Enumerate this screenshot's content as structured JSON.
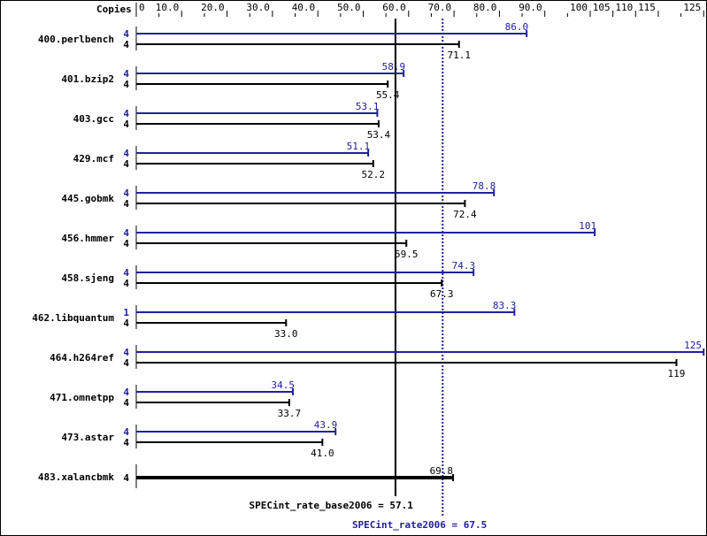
{
  "chart_data": {
    "type": "bar",
    "orientation": "horizontal",
    "copies_header": "Copies",
    "xlim": [
      0,
      125
    ],
    "tick_labels": [
      "0",
      "10.0",
      "20.0",
      "30.0",
      "40.0",
      "50.0",
      "60.0",
      "70.0",
      "80.0",
      "90.0",
      "100",
      "105",
      "110",
      "115",
      "125"
    ],
    "tick_values": [
      0,
      10,
      20,
      30,
      40,
      50,
      60,
      70,
      80,
      90,
      100,
      105,
      110,
      115,
      125
    ],
    "categories": [
      "400.perlbench",
      "401.bzip2",
      "403.gcc",
      "429.mcf",
      "445.gobmk",
      "456.hmmer",
      "458.sjeng",
      "462.libquantum",
      "464.h264ref",
      "471.omnetpp",
      "473.astar",
      "483.xalancbmk"
    ],
    "series": [
      {
        "key": "peak",
        "color": "#2020a0",
        "values": [
          86.0,
          58.9,
          53.1,
          51.1,
          78.8,
          101,
          74.3,
          83.3,
          125,
          34.5,
          43.9,
          null
        ],
        "labels": [
          "86.0",
          "58.9",
          "53.1",
          "51.1",
          "78.8",
          "101",
          "74.3",
          "83.3",
          "125",
          "34.5",
          "43.9",
          null
        ],
        "copies": [
          "4",
          "4",
          "4",
          "4",
          "4",
          "4",
          "4",
          "1",
          "4",
          "4",
          "4",
          null
        ]
      },
      {
        "key": "base",
        "color": "#000000",
        "values": [
          71.1,
          55.4,
          53.4,
          52.2,
          72.4,
          59.5,
          67.3,
          33.0,
          119,
          33.7,
          41.0,
          69.8
        ],
        "labels": [
          "71.1",
          "55.4",
          "53.4",
          "52.2",
          "72.4",
          "59.5",
          "67.3",
          "33.0",
          "119",
          "33.7",
          "41.0",
          "69.8"
        ],
        "copies": [
          "4",
          "4",
          "4",
          "4",
          "4",
          "4",
          "4",
          "4",
          "4",
          "4",
          "4",
          "4"
        ]
      }
    ],
    "reference_lines": [
      {
        "label": "SPECint_rate_base2006 = 57.1",
        "value": 57.1,
        "color": "#000000",
        "style": "solid"
      },
      {
        "label": "SPECint_rate2006 = 67.5",
        "value": 67.5,
        "color": "#2020a0",
        "style": "dotted"
      }
    ]
  }
}
